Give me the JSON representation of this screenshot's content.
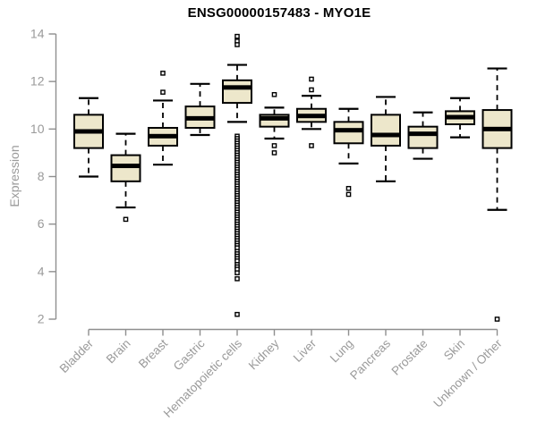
{
  "title": "ENSG00000157483 - MYO1E",
  "chart_data": {
    "type": "boxplot",
    "title": "ENSG00000157483 - MYO1E",
    "xlabel": "",
    "ylabel": "Expression",
    "ylim": [
      2,
      14
    ],
    "yticks": [
      2,
      4,
      6,
      8,
      10,
      12,
      14
    ],
    "grid": false,
    "legend": false,
    "categories": [
      "Bladder",
      "Brain",
      "Breast",
      "Gastric",
      "Hematopoietic cells",
      "Kidney",
      "Liver",
      "Lung",
      "Pancreas",
      "Prostate",
      "Skin",
      "Unknown / Other"
    ],
    "boxes": [
      {
        "category": "Bladder",
        "whisker_low": 8.0,
        "q1": 9.2,
        "median": 9.9,
        "q3": 10.6,
        "whisker_high": 11.3,
        "outliers": []
      },
      {
        "category": "Brain",
        "whisker_low": 6.7,
        "q1": 7.8,
        "median": 8.45,
        "q3": 8.9,
        "whisker_high": 9.8,
        "outliers": [
          6.2
        ]
      },
      {
        "category": "Breast",
        "whisker_low": 8.5,
        "q1": 9.3,
        "median": 9.7,
        "q3": 10.05,
        "whisker_high": 11.2,
        "outliers": [
          12.35,
          11.55
        ]
      },
      {
        "category": "Gastric",
        "whisker_low": 9.75,
        "q1": 10.05,
        "median": 10.45,
        "q3": 10.95,
        "whisker_high": 11.9,
        "outliers": []
      },
      {
        "category": "Hematopoietic cells",
        "whisker_low": 10.3,
        "q1": 11.1,
        "median": 11.75,
        "q3": 12.05,
        "whisker_high": 12.7,
        "outliers": [
          13.9,
          13.7,
          13.55,
          9.7,
          9.6,
          9.5,
          9.4,
          9.3,
          9.2,
          9.1,
          9.0,
          8.9,
          8.8,
          8.7,
          8.6,
          8.5,
          8.4,
          8.3,
          8.2,
          8.1,
          8.0,
          7.9,
          7.8,
          7.7,
          7.6,
          7.5,
          7.4,
          7.3,
          7.2,
          7.1,
          7.0,
          6.9,
          6.8,
          6.7,
          6.6,
          6.5,
          6.4,
          6.3,
          6.2,
          6.1,
          6.0,
          5.9,
          5.8,
          5.7,
          5.6,
          5.5,
          5.4,
          5.3,
          5.2,
          5.1,
          5.0,
          4.85,
          4.75,
          4.65,
          4.55,
          4.45,
          4.3,
          4.2,
          4.1,
          3.95,
          3.7,
          2.2
        ]
      },
      {
        "category": "Kidney",
        "whisker_low": 9.6,
        "q1": 10.1,
        "median": 10.45,
        "q3": 10.6,
        "whisker_high": 10.9,
        "outliers": [
          11.45,
          9.3,
          9.0
        ]
      },
      {
        "category": "Liver",
        "whisker_low": 10.0,
        "q1": 10.3,
        "median": 10.55,
        "q3": 10.85,
        "whisker_high": 11.4,
        "outliers": [
          12.1,
          11.65,
          9.3
        ]
      },
      {
        "category": "Lung",
        "whisker_low": 8.55,
        "q1": 9.4,
        "median": 9.95,
        "q3": 10.3,
        "whisker_high": 10.85,
        "outliers": [
          7.5,
          7.25
        ]
      },
      {
        "category": "Pancreas",
        "whisker_low": 7.8,
        "q1": 9.3,
        "median": 9.75,
        "q3": 10.6,
        "whisker_high": 11.35,
        "outliers": []
      },
      {
        "category": "Prostate",
        "whisker_low": 8.75,
        "q1": 9.2,
        "median": 9.8,
        "q3": 10.1,
        "whisker_high": 10.7,
        "outliers": []
      },
      {
        "category": "Skin",
        "whisker_low": 9.65,
        "q1": 10.2,
        "median": 10.5,
        "q3": 10.75,
        "whisker_high": 11.3,
        "outliers": []
      },
      {
        "category": "Unknown / Other",
        "whisker_low": 6.6,
        "q1": 9.2,
        "median": 10.0,
        "q3": 10.8,
        "whisker_high": 12.55,
        "outliers": [
          2.0
        ]
      }
    ],
    "colors": {
      "box_fill": "#ede7cb",
      "box_border": "#000000",
      "median": "#000000",
      "whisker": "#000000",
      "outlier_fill": "#ffffff",
      "outlier_border": "#000000",
      "axis": "#8f8f8f",
      "tick_label": "#9a9a9a",
      "title": "#000000",
      "background": "#ffffff"
    }
  }
}
